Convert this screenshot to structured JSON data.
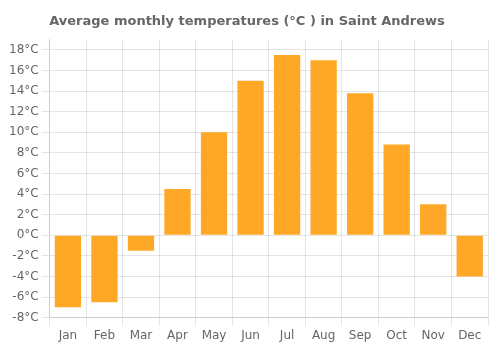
{
  "chart_data": {
    "type": "bar",
    "title": "Average monthly temperatures (°C ) in Saint Andrews",
    "categories": [
      "Jan",
      "Feb",
      "Mar",
      "Apr",
      "May",
      "Jun",
      "Jul",
      "Aug",
      "Sep",
      "Oct",
      "Nov",
      "Dec"
    ],
    "values": [
      -7.0,
      -6.5,
      -1.5,
      4.5,
      10.0,
      15.0,
      17.5,
      17.0,
      13.8,
      8.8,
      3.0,
      -4.0
    ],
    "color": "#FFA726",
    "ylim": [
      -8,
      19
    ],
    "yticks": [
      {
        "value": -8,
        "label": "-8°C"
      },
      {
        "value": -6,
        "label": "-6°C"
      },
      {
        "value": -4,
        "label": "-4°C"
      },
      {
        "value": -2,
        "label": "-2°C"
      },
      {
        "value": 0,
        "label": "0°C"
      },
      {
        "value": 2,
        "label": "2°C"
      },
      {
        "value": 4,
        "label": "4°C"
      },
      {
        "value": 6,
        "label": "6°C"
      },
      {
        "value": 8,
        "label": "8°C"
      },
      {
        "value": 10,
        "label": "10°C"
      },
      {
        "value": 12,
        "label": "12°C"
      },
      {
        "value": 14,
        "label": "14°C"
      },
      {
        "value": 16,
        "label": "16°C"
      },
      {
        "value": 18,
        "label": "18°C"
      }
    ],
    "grid": true
  }
}
